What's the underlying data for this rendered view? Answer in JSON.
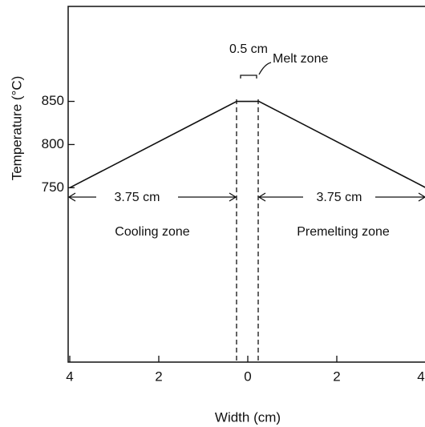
{
  "chart_data": {
    "type": "line",
    "x_label": "Width (cm)",
    "y_label": "Temperature (°C)",
    "x": [
      -4,
      -0.25,
      0.25,
      4
    ],
    "values": [
      750,
      850,
      850,
      750
    ],
    "color": "#111111",
    "xlim": [
      -4,
      4
    ],
    "ylim": [
      548,
      960
    ],
    "xticks": [
      {
        "value": -4,
        "label": "4"
      },
      {
        "value": -2,
        "label": "2"
      },
      0,
      2,
      4
    ],
    "yticks": [
      750,
      800,
      850
    ],
    "annotations": [
      "0.5 cm",
      "Melt zone",
      "3.75 cm",
      "3.75 cm",
      "Cooling zone",
      "Premelting zone"
    ]
  }
}
